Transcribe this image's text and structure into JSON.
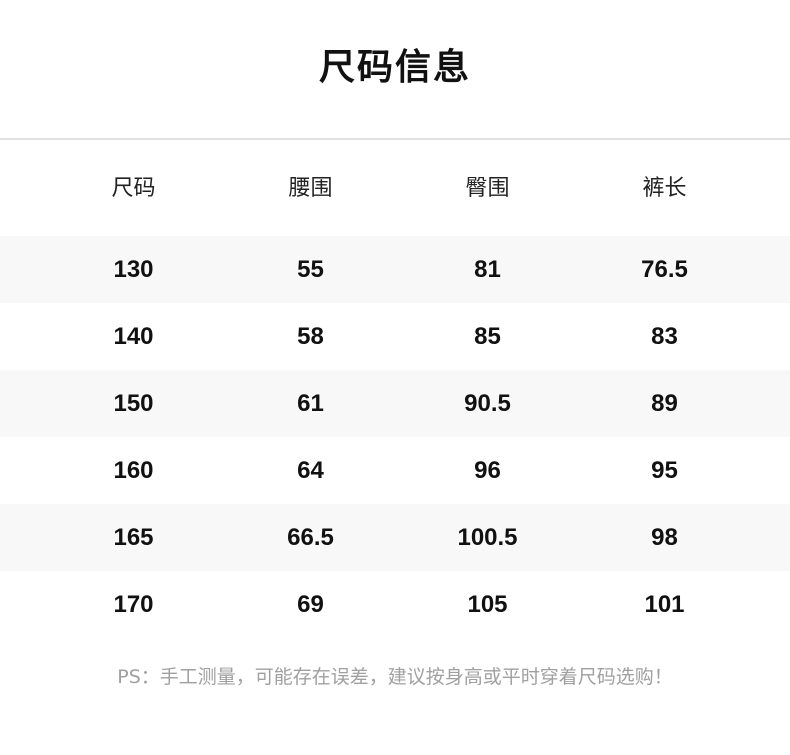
{
  "title": "尺码信息",
  "table": {
    "headers": [
      "尺码",
      "腰围",
      "臀围",
      "裤长"
    ],
    "rows": [
      [
        "130",
        "55",
        "81",
        "76.5"
      ],
      [
        "140",
        "58",
        "85",
        "83"
      ],
      [
        "150",
        "61",
        "90.5",
        "89"
      ],
      [
        "160",
        "64",
        "96",
        "95"
      ],
      [
        "165",
        "66.5",
        "100.5",
        "98"
      ],
      [
        "170",
        "69",
        "105",
        "101"
      ]
    ]
  },
  "note": "PS：手工测量，可能存在误差，建议按身高或平时穿着尺码选购！",
  "colors": {
    "stripe": "#f8f8f8",
    "note": "#a0a0a0",
    "divider": "#e2e2e2"
  }
}
